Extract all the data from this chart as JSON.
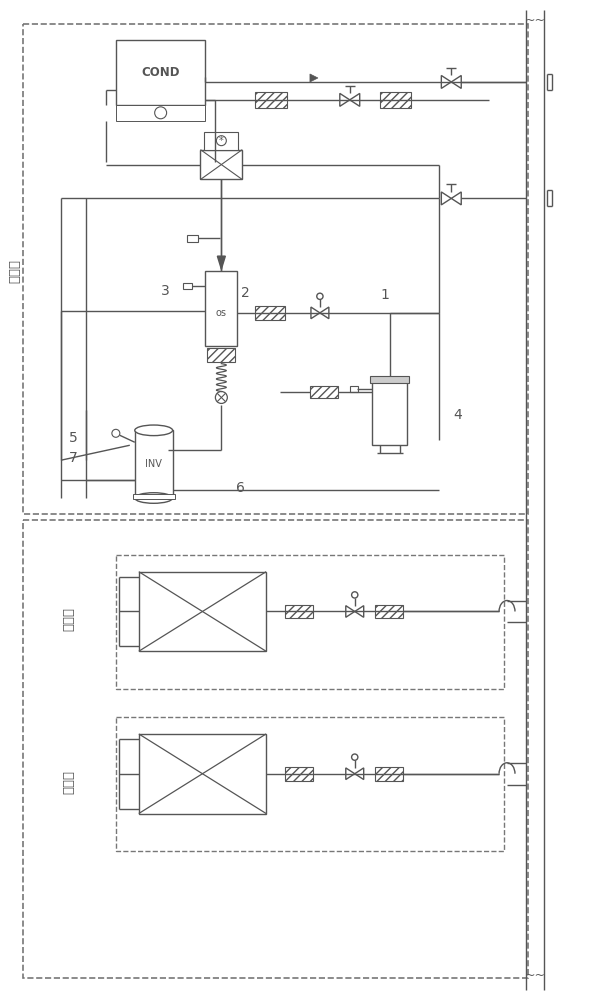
{
  "bg_color": "#ffffff",
  "lc": "#555555",
  "lc2": "#333333",
  "label_waijianji": "室外机",
  "label_neijianji": "室内机",
  "label_cond": "COND",
  "label_inv": "INV",
  "label_os": "os",
  "n1": "1",
  "n2": "2",
  "n3": "3",
  "n4": "4",
  "n5": "5",
  "n6": "6",
  "n7": "7"
}
